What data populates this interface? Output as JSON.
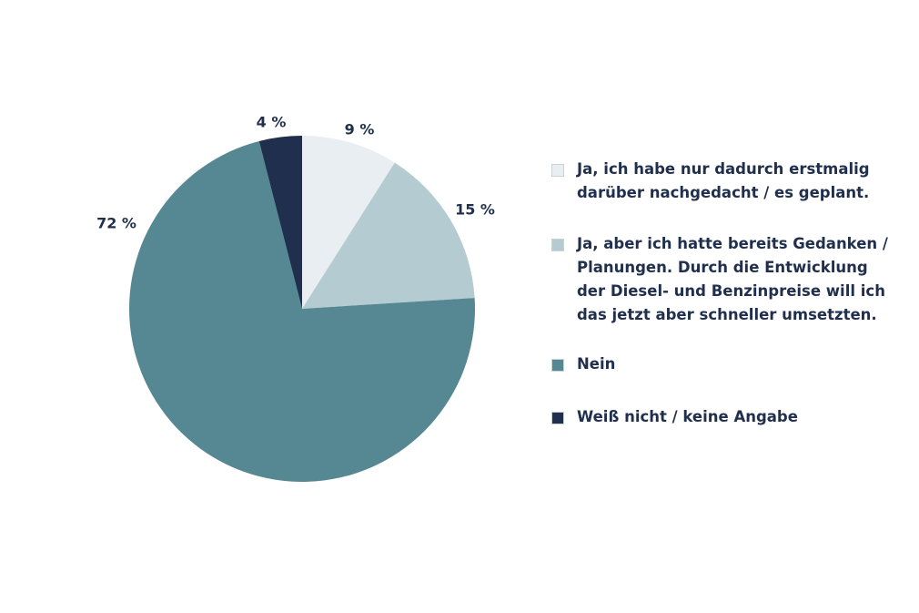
{
  "chart_data": {
    "type": "pie",
    "categories": [
      "Ja, ich habe nur dadurch erstmalig darüber nachgedacht / es geplant.",
      "Ja, aber ich hatte bereits Gedanken / Planungen. Durch die Entwicklung der Diesel- und Benzinpreise will ich das jetzt aber schneller umsetzten.",
      "Nein",
      "Weiß nicht / keine Angabe"
    ],
    "values": [
      9,
      15,
      72,
      4
    ],
    "value_labels": [
      "9 %",
      "15 %",
      "72 %",
      "4 %"
    ],
    "colors": [
      "#e8eef1",
      "#b3cbd1",
      "#568893",
      "#1f2f4d"
    ]
  }
}
